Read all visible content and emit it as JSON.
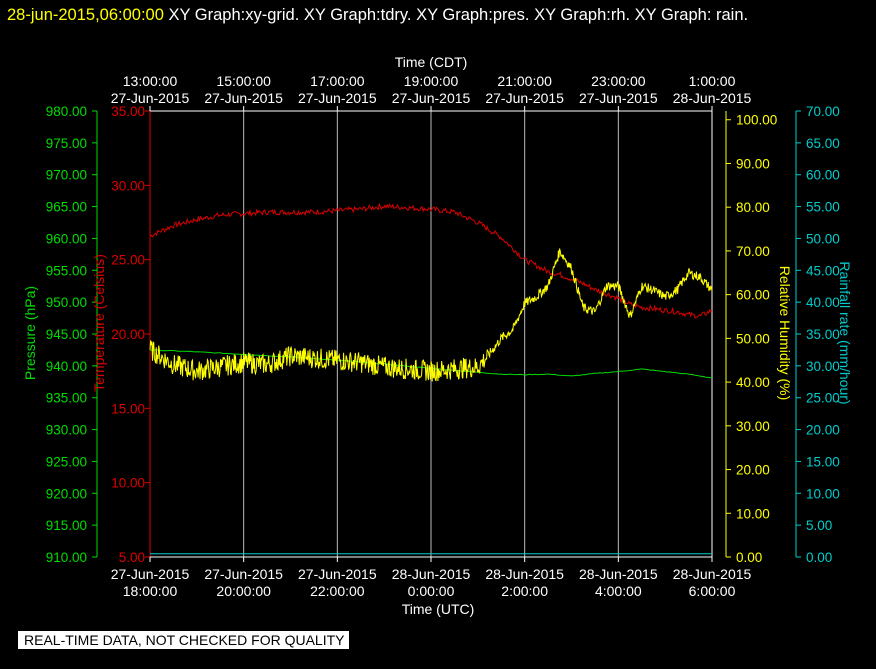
{
  "header": {
    "timestamp": "28-jun-2015,06:00:00",
    "titles": "  XY Graph:xy-grid.  XY Graph:tdry.  XY Graph:pres.  XY Graph:rh.  XY Graph: rain."
  },
  "qc_note": "REAL-TIME DATA, NOT CHECKED FOR QUALITY",
  "colors": {
    "pressure": "#00dd00",
    "temperature": "#dd0000",
    "humidity": "#ffff00",
    "rain": "#00cccc",
    "grid": "#ffffff",
    "axis": "#ffffff"
  },
  "chart_data": {
    "type": "line",
    "x_domain_hours": [
      0,
      12
    ],
    "top_axis": {
      "label": "Time (CDT)",
      "ticks": [
        {
          "h": 0,
          "time": "13:00:00",
          "date": "27-Jun-2015"
        },
        {
          "h": 2,
          "time": "15:00:00",
          "date": "27-Jun-2015"
        },
        {
          "h": 4,
          "time": "17:00:00",
          "date": "27-Jun-2015"
        },
        {
          "h": 6,
          "time": "19:00:00",
          "date": "27-Jun-2015"
        },
        {
          "h": 8,
          "time": "21:00:00",
          "date": "27-Jun-2015"
        },
        {
          "h": 10,
          "time": "23:00:00",
          "date": "27-Jun-2015"
        },
        {
          "h": 12,
          "time": "1:00:00",
          "date": "28-Jun-2015"
        }
      ]
    },
    "bottom_axis": {
      "label": "Time (UTC)",
      "ticks": [
        {
          "h": 0,
          "date": "27-Jun-2015",
          "time": "18:00:00"
        },
        {
          "h": 2,
          "date": "27-Jun-2015",
          "time": "20:00:00"
        },
        {
          "h": 4,
          "date": "27-Jun-2015",
          "time": "22:00:00"
        },
        {
          "h": 6,
          "date": "28-Jun-2015",
          "time": "0:00:00"
        },
        {
          "h": 8,
          "date": "28-Jun-2015",
          "time": "2:00:00"
        },
        {
          "h": 10,
          "date": "28-Jun-2015",
          "time": "4:00:00"
        },
        {
          "h": 12,
          "date": "28-Jun-2015",
          "time": "6:00:00"
        }
      ]
    },
    "axes": {
      "pressure": {
        "label": "Pressure (hPa)",
        "range": [
          910,
          980
        ],
        "ticks": [
          "980.00",
          "975.00",
          "970.00",
          "965.00",
          "960.00",
          "955.00",
          "950.00",
          "945.00",
          "940.00",
          "935.00",
          "930.00",
          "925.00",
          "920.00",
          "915.00",
          "910.00"
        ]
      },
      "temperature": {
        "label": "Temperature (Celsius)",
        "range": [
          5,
          35
        ],
        "ticks": [
          "35.00",
          "30.00",
          "25.00",
          "20.00",
          "15.00",
          "10.00",
          "5.00"
        ]
      },
      "humidity": {
        "label": "Relative Humidity (%)",
        "range": [
          0,
          102
        ],
        "ticks": [
          "100.00",
          "90.00",
          "80.00",
          "70.00",
          "60.00",
          "50.00",
          "40.00",
          "30.00",
          "20.00",
          "10.00",
          "0.00"
        ]
      },
      "rain": {
        "label": "Rainfall rate (mm/hour)",
        "range": [
          0,
          70
        ],
        "ticks": [
          "70.00",
          "65.00",
          "60.00",
          "55.00",
          "50.00",
          "45.00",
          "40.00",
          "35.00",
          "30.00",
          "25.00",
          "20.00",
          "15.00",
          "10.00",
          "5.00",
          "0.00"
        ]
      }
    },
    "series": [
      {
        "name": "tdry",
        "axis": "temperature",
        "x": [
          0,
          0.5,
          1,
          1.5,
          2,
          2.5,
          3,
          3.5,
          4,
          4.5,
          5,
          5.5,
          6,
          6.5,
          7,
          7.5,
          8,
          8.25,
          8.5,
          8.75,
          9,
          9.25,
          9.5,
          9.75,
          10,
          10.25,
          10.5,
          10.75,
          11,
          11.25,
          11.5,
          11.75,
          12
        ],
        "y": [
          26.6,
          27.3,
          27.7,
          28.0,
          28.1,
          28.2,
          28.2,
          28.2,
          28.3,
          28.4,
          28.6,
          28.5,
          28.4,
          28.2,
          27.5,
          26.5,
          25.0,
          24.6,
          24.2,
          24.0,
          23.7,
          23.4,
          23.0,
          22.7,
          22.4,
          22.0,
          21.8,
          21.7,
          21.6,
          21.5,
          21.3,
          21.2,
          21.6
        ]
      },
      {
        "name": "pres",
        "axis": "pressure",
        "x": [
          0,
          1,
          2,
          3,
          4,
          5,
          6,
          7,
          7.5,
          8,
          8.5,
          9,
          9.5,
          10,
          10.5,
          11,
          11.5,
          12
        ],
        "y": [
          942.5,
          942.2,
          941.8,
          941.4,
          940.9,
          940.3,
          939.6,
          939.0,
          938.7,
          938.6,
          938.7,
          938.4,
          938.8,
          939.1,
          939.5,
          939.1,
          938.7,
          938.1
        ]
      },
      {
        "name": "rh",
        "axis": "humidity",
        "x": [
          0,
          0.5,
          1,
          1.5,
          2,
          2.5,
          3,
          3.5,
          4,
          4.5,
          5,
          5.5,
          6,
          6.5,
          7,
          7.25,
          7.5,
          7.75,
          8,
          8.25,
          8.5,
          8.75,
          9,
          9.25,
          9.5,
          9.75,
          10,
          10.25,
          10.5,
          10.75,
          11,
          11.25,
          11.5,
          11.75,
          12
        ],
        "y": [
          47.5,
          44.0,
          42.5,
          43.5,
          44.5,
          44.0,
          46.0,
          45.5,
          45.0,
          44.5,
          43.5,
          43.0,
          42.5,
          43.0,
          43.5,
          46.5,
          50.0,
          52.0,
          58.0,
          59.5,
          62.0,
          70.0,
          66.0,
          57.0,
          56.0,
          62.0,
          62.0,
          55.0,
          62.0,
          61.0,
          59.5,
          61.0,
          65.0,
          64.0,
          61.0
        ]
      },
      {
        "name": "rain",
        "axis": "rain",
        "x": [
          0,
          12
        ],
        "y": [
          0.5,
          0.5
        ]
      }
    ]
  }
}
